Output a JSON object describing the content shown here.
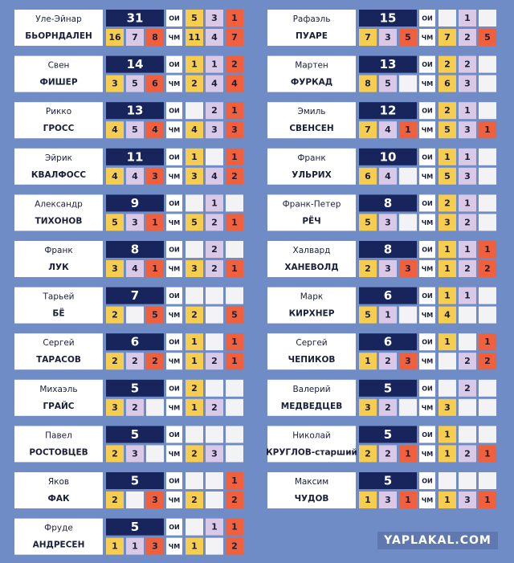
{
  "labels": {
    "oi": "ОИ",
    "wm": "ЧМ"
  },
  "columns": [
    [
      {
        "first": "Уле-Эйнар",
        "last": "БЬОРНДАЛЕН",
        "total": 31,
        "oi": [
          5,
          3,
          1
        ],
        "sum": [
          16,
          7,
          8
        ],
        "wm": [
          11,
          4,
          7
        ]
      },
      {
        "first": "Свен",
        "last": "ФИШЕР",
        "total": 14,
        "oi": [
          1,
          1,
          2
        ],
        "sum": [
          3,
          5,
          6
        ],
        "wm": [
          2,
          4,
          4
        ]
      },
      {
        "first": "Рикко",
        "last": "ГРОСС",
        "total": 13,
        "oi": [
          null,
          2,
          1
        ],
        "sum": [
          4,
          5,
          4
        ],
        "wm": [
          4,
          3,
          3
        ]
      },
      {
        "first": "Эйрик",
        "last": "КВАЛФОСС",
        "total": 11,
        "oi": [
          1,
          null,
          1
        ],
        "sum": [
          4,
          4,
          3
        ],
        "wm": [
          3,
          4,
          2
        ]
      },
      {
        "first": "Александр",
        "last": "ТИХОНОВ",
        "total": 9,
        "oi": [
          null,
          1,
          null
        ],
        "sum": [
          5,
          3,
          1
        ],
        "wm": [
          5,
          2,
          1
        ]
      },
      {
        "first": "Франк",
        "last": "ЛУК",
        "total": 8,
        "oi": [
          null,
          2,
          null
        ],
        "sum": [
          3,
          4,
          1
        ],
        "wm": [
          3,
          2,
          1
        ]
      },
      {
        "first": "Тарьей",
        "last": "БЁ",
        "total": 7,
        "oi": [
          null,
          null,
          null
        ],
        "sum": [
          2,
          null,
          5
        ],
        "wm": [
          2,
          null,
          5
        ]
      },
      {
        "first": "Сергей",
        "last": "ТАРАСОВ",
        "total": 6,
        "oi": [
          1,
          null,
          1
        ],
        "sum": [
          2,
          2,
          2
        ],
        "wm": [
          1,
          2,
          1
        ]
      },
      {
        "first": "Михаэль",
        "last": "ГРАЙС",
        "total": 5,
        "oi": [
          2,
          null,
          null
        ],
        "sum": [
          3,
          2,
          null
        ],
        "wm": [
          1,
          2,
          null
        ]
      },
      {
        "first": "Павел",
        "last": "РОСТОВЦЕВ",
        "total": 5,
        "oi": [
          null,
          null,
          null
        ],
        "sum": [
          2,
          3,
          null
        ],
        "wm": [
          2,
          3,
          null
        ]
      },
      {
        "first": "Яков",
        "last": "ФАК",
        "total": 5,
        "oi": [
          null,
          null,
          1
        ],
        "sum": [
          2,
          null,
          3
        ],
        "wm": [
          2,
          null,
          2
        ]
      },
      {
        "first": "Фруде",
        "last": "АНДРЕСЕН",
        "total": 5,
        "oi": [
          null,
          1,
          1
        ],
        "sum": [
          1,
          1,
          3
        ],
        "wm": [
          1,
          null,
          2
        ]
      }
    ],
    [
      {
        "first": "Рафаэль",
        "last": "ПУАРЕ",
        "total": 15,
        "oi": [
          null,
          1,
          null
        ],
        "sum": [
          7,
          3,
          5
        ],
        "wm": [
          7,
          2,
          5
        ]
      },
      {
        "first": "Мартен",
        "last": "ФУРКАД",
        "total": 13,
        "oi": [
          2,
          2,
          null
        ],
        "sum": [
          8,
          5,
          null
        ],
        "wm": [
          6,
          3,
          null
        ]
      },
      {
        "first": "Эмиль",
        "last": "СВЕНСЕН",
        "total": 12,
        "oi": [
          2,
          1,
          null
        ],
        "sum": [
          7,
          4,
          1
        ],
        "wm": [
          5,
          3,
          1
        ]
      },
      {
        "first": "Франк",
        "last": "УЛЬРИХ",
        "total": 10,
        "oi": [
          1,
          1,
          null
        ],
        "sum": [
          6,
          4,
          null
        ],
        "wm": [
          5,
          3,
          null
        ]
      },
      {
        "first": "Франк-Петер",
        "last": "РЁЧ",
        "total": 8,
        "oi": [
          2,
          1,
          null
        ],
        "sum": [
          5,
          3,
          null
        ],
        "wm": [
          3,
          2,
          null
        ]
      },
      {
        "first": "Халвард",
        "last": "ХАНЕВОЛД",
        "total": 8,
        "oi": [
          1,
          1,
          1
        ],
        "sum": [
          2,
          3,
          3
        ],
        "wm": [
          1,
          2,
          2
        ]
      },
      {
        "first": "Марк",
        "last": "КИРХНЕР",
        "total": 6,
        "oi": [
          1,
          1,
          null
        ],
        "sum": [
          5,
          1,
          null
        ],
        "wm": [
          4,
          null,
          null
        ]
      },
      {
        "first": "Сергей",
        "last": "ЧЕПИКОВ",
        "total": 6,
        "oi": [
          1,
          null,
          1
        ],
        "sum": [
          1,
          2,
          3
        ],
        "wm": [
          null,
          2,
          2
        ]
      },
      {
        "first": "Валерий",
        "last": "МЕДВЕДЦЕВ",
        "total": 5,
        "oi": [
          null,
          2,
          null
        ],
        "sum": [
          3,
          2,
          null
        ],
        "wm": [
          3,
          null,
          null
        ]
      },
      {
        "first": "Николай",
        "last": "КРУГЛОВ-старший",
        "total": 5,
        "oi": [
          1,
          null,
          null
        ],
        "sum": [
          2,
          2,
          1
        ],
        "wm": [
          1,
          2,
          1
        ]
      },
      {
        "first": "Максим",
        "last": "ЧУДОВ",
        "total": 5,
        "oi": [
          null,
          null,
          null
        ],
        "sum": [
          1,
          3,
          1
        ],
        "wm": [
          1,
          3,
          1
        ]
      }
    ]
  ],
  "watermark": "YAPLAKAL.COM"
}
